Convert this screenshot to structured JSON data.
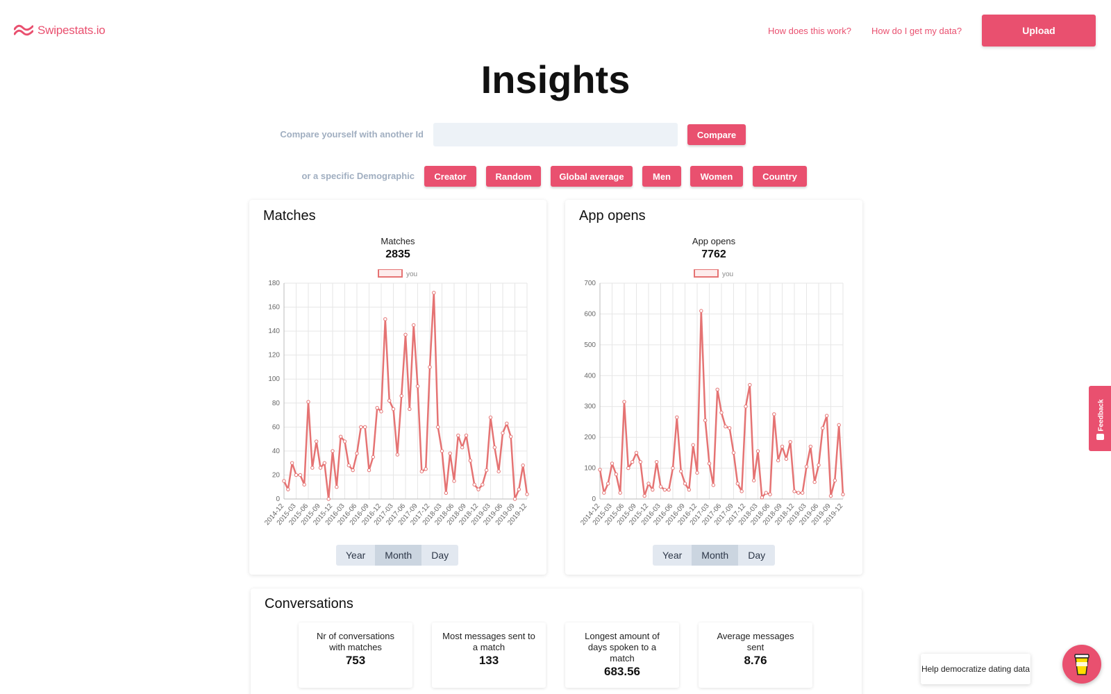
{
  "header": {
    "brand": "Swipestats.io",
    "links": [
      "How does this work?",
      "How do I get my data?"
    ],
    "upload_label": "Upload"
  },
  "page_title": "Insights",
  "compare": {
    "label": "Compare yourself with another Id",
    "input_value": "",
    "button_label": "Compare",
    "demographic_label": "or a specific Demographic",
    "demographics": [
      "Creator",
      "Random",
      "Global average",
      "Men",
      "Women",
      "Country"
    ]
  },
  "colors": {
    "accent": "#e9506f",
    "line": "#e57373"
  },
  "cards": {
    "matches": {
      "title": "Matches",
      "metric_label": "Matches",
      "metric_value": "2835"
    },
    "app_opens": {
      "title": "App opens",
      "metric_label": "App opens",
      "metric_value": "7762"
    }
  },
  "period_toggle": {
    "options": [
      "Year",
      "Month",
      "Day"
    ],
    "active": "Month"
  },
  "chart_data": [
    {
      "type": "line",
      "legend": [
        "you"
      ],
      "ylim": [
        0,
        180
      ],
      "yticks": [
        0,
        20,
        40,
        60,
        80,
        100,
        120,
        140,
        160,
        180
      ],
      "x_tick_labels": [
        "2014-12",
        "2015-03",
        "2015-06",
        "2015-09",
        "2015-12",
        "2016-03",
        "2016-06",
        "2016-09",
        "2016-12",
        "2017-03",
        "2017-06",
        "2017-09",
        "2017-12",
        "2018-03",
        "2018-06",
        "2018-09",
        "2018-12",
        "2019-03",
        "2019-06",
        "2019-09",
        "2019-12"
      ],
      "series": [
        {
          "name": "you",
          "values": [
            15,
            8,
            30,
            20,
            20,
            12,
            81,
            26,
            48,
            26,
            30,
            0,
            40,
            10,
            52,
            48,
            28,
            24,
            38,
            60,
            60,
            24,
            35,
            76,
            73,
            150,
            82,
            75,
            37,
            86,
            137,
            75,
            145,
            94,
            23,
            25,
            110,
            172,
            60,
            40,
            5,
            38,
            15,
            53,
            43,
            53,
            32,
            12,
            8,
            12,
            24,
            68,
            43,
            23,
            55,
            63,
            52,
            0,
            8,
            28,
            4
          ]
        }
      ]
    },
    {
      "type": "line",
      "legend": [
        "you"
      ],
      "ylim": [
        0,
        700
      ],
      "yticks": [
        0,
        100,
        200,
        300,
        400,
        500,
        600,
        700
      ],
      "x_tick_labels": [
        "2014-12",
        "2015-03",
        "2015-06",
        "2015-09",
        "2015-12",
        "2016-03",
        "2016-06",
        "2016-09",
        "2016-12",
        "2017-03",
        "2017-06",
        "2017-09",
        "2017-12",
        "2018-03",
        "2018-06",
        "2018-09",
        "2018-12",
        "2019-03",
        "2019-06",
        "2019-09",
        "2019-12"
      ],
      "series": [
        {
          "name": "you",
          "values": [
            95,
            20,
            50,
            115,
            80,
            20,
            315,
            100,
            120,
            150,
            120,
            10,
            50,
            30,
            120,
            40,
            30,
            30,
            100,
            265,
            90,
            50,
            30,
            175,
            85,
            610,
            255,
            115,
            45,
            355,
            280,
            235,
            230,
            150,
            50,
            25,
            300,
            370,
            60,
            155,
            5,
            20,
            15,
            275,
            125,
            170,
            130,
            185,
            25,
            20,
            20,
            105,
            170,
            55,
            110,
            230,
            270,
            10,
            60,
            240,
            15
          ]
        }
      ]
    }
  ],
  "conversations": {
    "title": "Conversations",
    "stats": [
      {
        "label": "Nr of conversations with matches",
        "value": "753"
      },
      {
        "label": "Most messages sent to a match",
        "value": "133"
      },
      {
        "label": "Longest amount of days spoken to a match",
        "value": "683.56"
      },
      {
        "label": "Average messages sent",
        "value": "8.76"
      }
    ]
  },
  "feedback_label": "Feedback",
  "help_text": "Help democratize dating data"
}
